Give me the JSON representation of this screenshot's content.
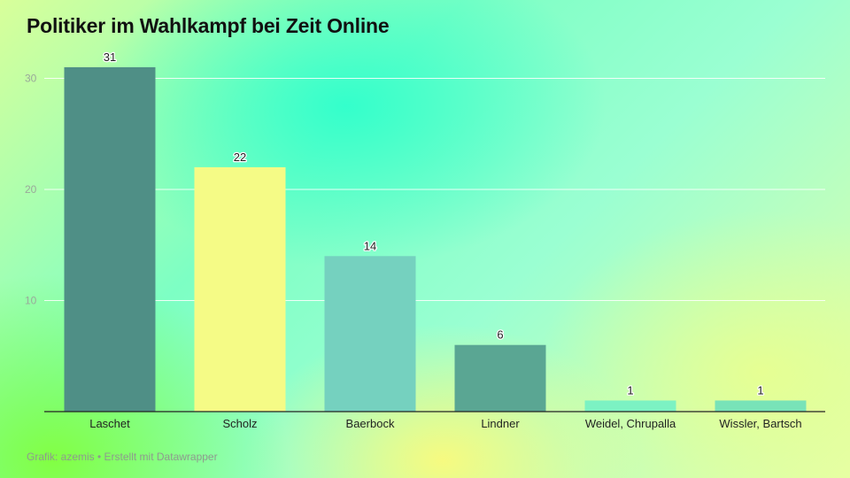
{
  "title": "Politiker im Wahlkampf bei Zeit Online",
  "footer": "Grafik: azemis • Erstellt mit Datawrapper",
  "colors": {
    "gridline": "#ffffff",
    "baseline": "#222222",
    "tick_text": "#9aa89a",
    "label_text": "#222222"
  },
  "chart_data": {
    "type": "bar",
    "title": "Politiker im Wahlkampf bei Zeit Online",
    "categories": [
      "Laschet",
      "Scholz",
      "Baerbock",
      "Lindner",
      "Weidel, Chrupalla",
      "Wissler, Bartsch"
    ],
    "values": [
      31,
      22,
      14,
      6,
      1,
      1
    ],
    "bar_colors": [
      "#4f8f86",
      "#f5fb86",
      "#75d1bf",
      "#5aa693",
      "#7cf2c3",
      "#78e3b8"
    ],
    "data_labels": [
      "31",
      "22",
      "14",
      "6",
      "1",
      "1"
    ],
    "yticks": [
      10,
      20,
      30
    ],
    "ytick_labels": [
      "10",
      "20",
      "30"
    ],
    "ylim": [
      0,
      30
    ],
    "xlabel": "",
    "ylabel": "",
    "grid": true,
    "legend": "none"
  }
}
